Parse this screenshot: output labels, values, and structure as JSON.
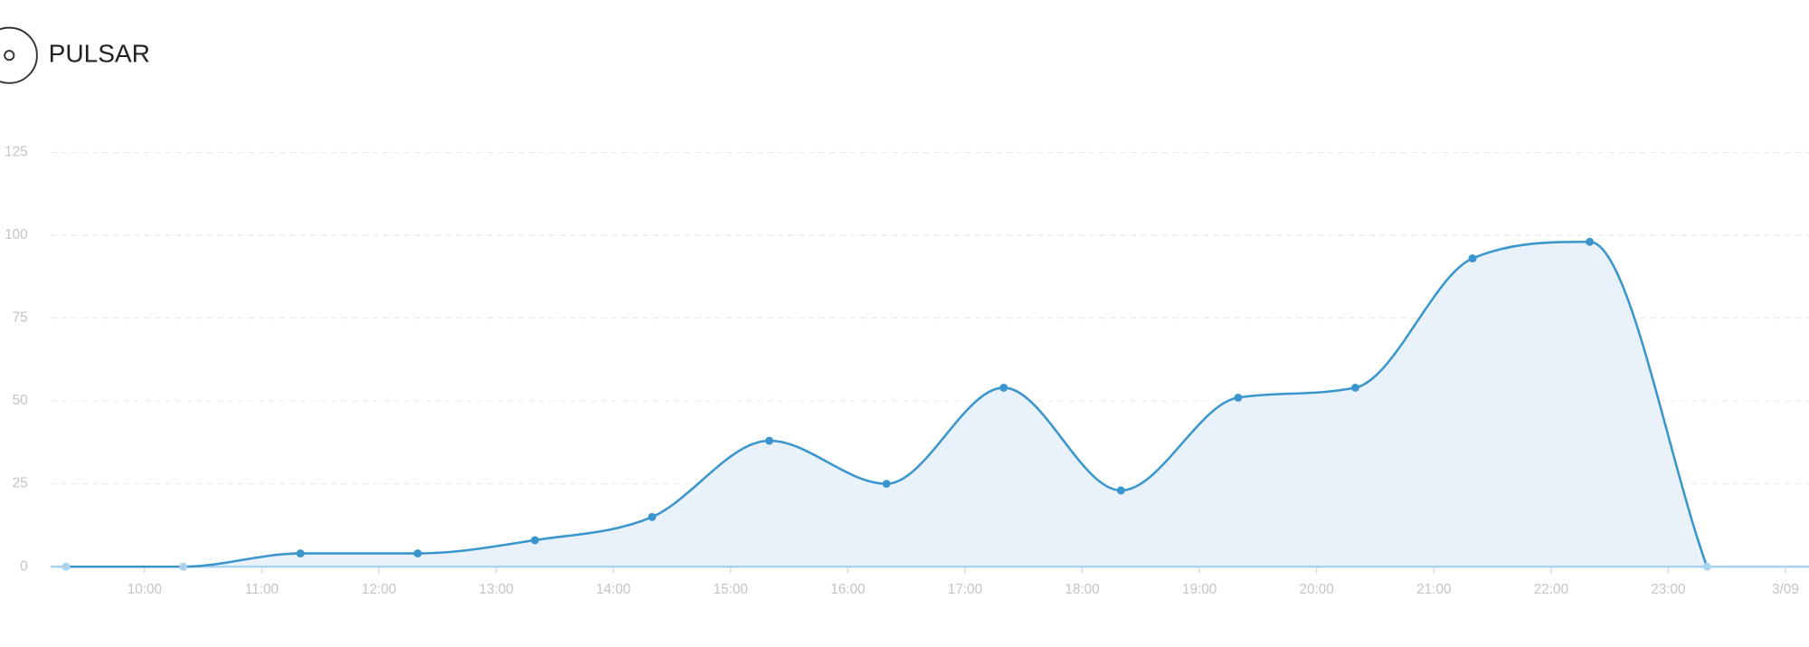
{
  "header": {
    "title": "PULSAR"
  },
  "chart_data": {
    "type": "area",
    "x": [
      9.33,
      10.33,
      11.33,
      12.33,
      13.33,
      14.33,
      15.33,
      16.33,
      17.33,
      18.33,
      19.33,
      20.33,
      21.33,
      22.33,
      23.33
    ],
    "series": [
      {
        "color": "#3a96cc",
        "values": [
          0,
          0,
          4,
          4,
          8,
          15,
          38,
          25,
          54,
          23,
          51,
          54,
          93,
          98,
          0
        ]
      }
    ],
    "xlim": [
      9.2,
      24.2
    ],
    "xticks": [
      {
        "value": 10,
        "label": "10:00"
      },
      {
        "value": 11,
        "label": "11:00"
      },
      {
        "value": 12,
        "label": "12:00"
      },
      {
        "value": 13,
        "label": "13:00"
      },
      {
        "value": 14,
        "label": "14:00"
      },
      {
        "value": 15,
        "label": "15:00"
      },
      {
        "value": 16,
        "label": "16:00"
      },
      {
        "value": 17,
        "label": "17:00"
      },
      {
        "value": 18,
        "label": "18:00"
      },
      {
        "value": 19,
        "label": "19:00"
      },
      {
        "value": 20,
        "label": "20:00"
      },
      {
        "value": 21,
        "label": "21:00"
      },
      {
        "value": 22,
        "label": "22:00"
      },
      {
        "value": 23,
        "label": "23:00"
      },
      {
        "value": 24,
        "label": "3/09"
      }
    ],
    "ylim": [
      0,
      125
    ],
    "yticks": [
      0,
      25,
      50,
      75,
      100,
      125
    ],
    "grid": true
  }
}
